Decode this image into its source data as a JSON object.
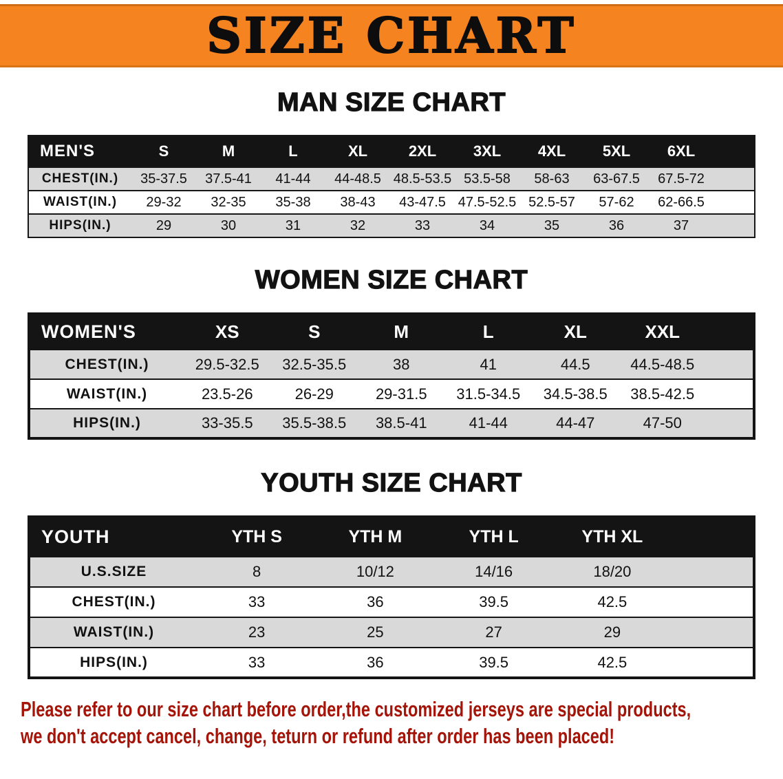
{
  "banner": {
    "title": "SIZE CHART"
  },
  "men": {
    "heading": "MAN SIZE CHART",
    "header": [
      "MEN'S",
      "S",
      "M",
      "L",
      "XL",
      "2XL",
      "3XL",
      "4XL",
      "5XL",
      "6XL"
    ],
    "rows": [
      {
        "label": "CHEST(IN.)",
        "values": [
          "35-37.5",
          "37.5-41",
          "41-44",
          "44-48.5",
          "48.5-53.5",
          "53.5-58",
          "58-63",
          "63-67.5",
          "67.5-72"
        ]
      },
      {
        "label": "WAIST(IN.)",
        "values": [
          "29-32",
          "32-35",
          "35-38",
          "38-43",
          "43-47.5",
          "47.5-52.5",
          "52.5-57",
          "57-62",
          "62-66.5"
        ]
      },
      {
        "label": "HIPS(IN.)",
        "values": [
          "29",
          "30",
          "31",
          "32",
          "33",
          "34",
          "35",
          "36",
          "37"
        ]
      }
    ]
  },
  "women": {
    "heading": "WOMEN SIZE CHART",
    "header": [
      "WOMEN'S",
      "XS",
      "S",
      "M",
      "L",
      "XL",
      "XXL"
    ],
    "rows": [
      {
        "label": "CHEST(IN.)",
        "values": [
          "29.5-32.5",
          "32.5-35.5",
          "38",
          "41",
          "44.5",
          "44.5-48.5"
        ]
      },
      {
        "label": "WAIST(IN.)",
        "values": [
          "23.5-26",
          "26-29",
          "29-31.5",
          "31.5-34.5",
          "34.5-38.5",
          "38.5-42.5"
        ]
      },
      {
        "label": "HIPS(IN.)",
        "values": [
          "33-35.5",
          "35.5-38.5",
          "38.5-41",
          "41-44",
          "44-47",
          "47-50"
        ]
      }
    ]
  },
  "youth": {
    "heading": "YOUTH SIZE CHART",
    "header": [
      "YOUTH",
      "YTH S",
      "YTH M",
      "YTH L",
      "YTH XL"
    ],
    "rows": [
      {
        "label": "U.S.SIZE",
        "values": [
          "8",
          "10/12",
          "14/16",
          "18/20"
        ]
      },
      {
        "label": "CHEST(IN.)",
        "values": [
          "33",
          "36",
          "39.5",
          "42.5"
        ]
      },
      {
        "label": "WAIST(IN.)",
        "values": [
          "23",
          "25",
          "27",
          "29"
        ]
      },
      {
        "label": "HIPS(IN.)",
        "values": [
          "33",
          "36",
          "39.5",
          "42.5"
        ]
      }
    ]
  },
  "disclaimer": {
    "lines": [
      "Please refer to our size chart before order,the customized jerseys are special products,",
      "we don't accept cancel, change, teturn or refund after order has been placed!"
    ]
  },
  "colors": {
    "banner_orange": "#f5831f",
    "table_header_black": "#141414",
    "row_gray": "#d9d9d9",
    "row_white": "#ffffff",
    "disclaimer_red": "#a41408"
  }
}
